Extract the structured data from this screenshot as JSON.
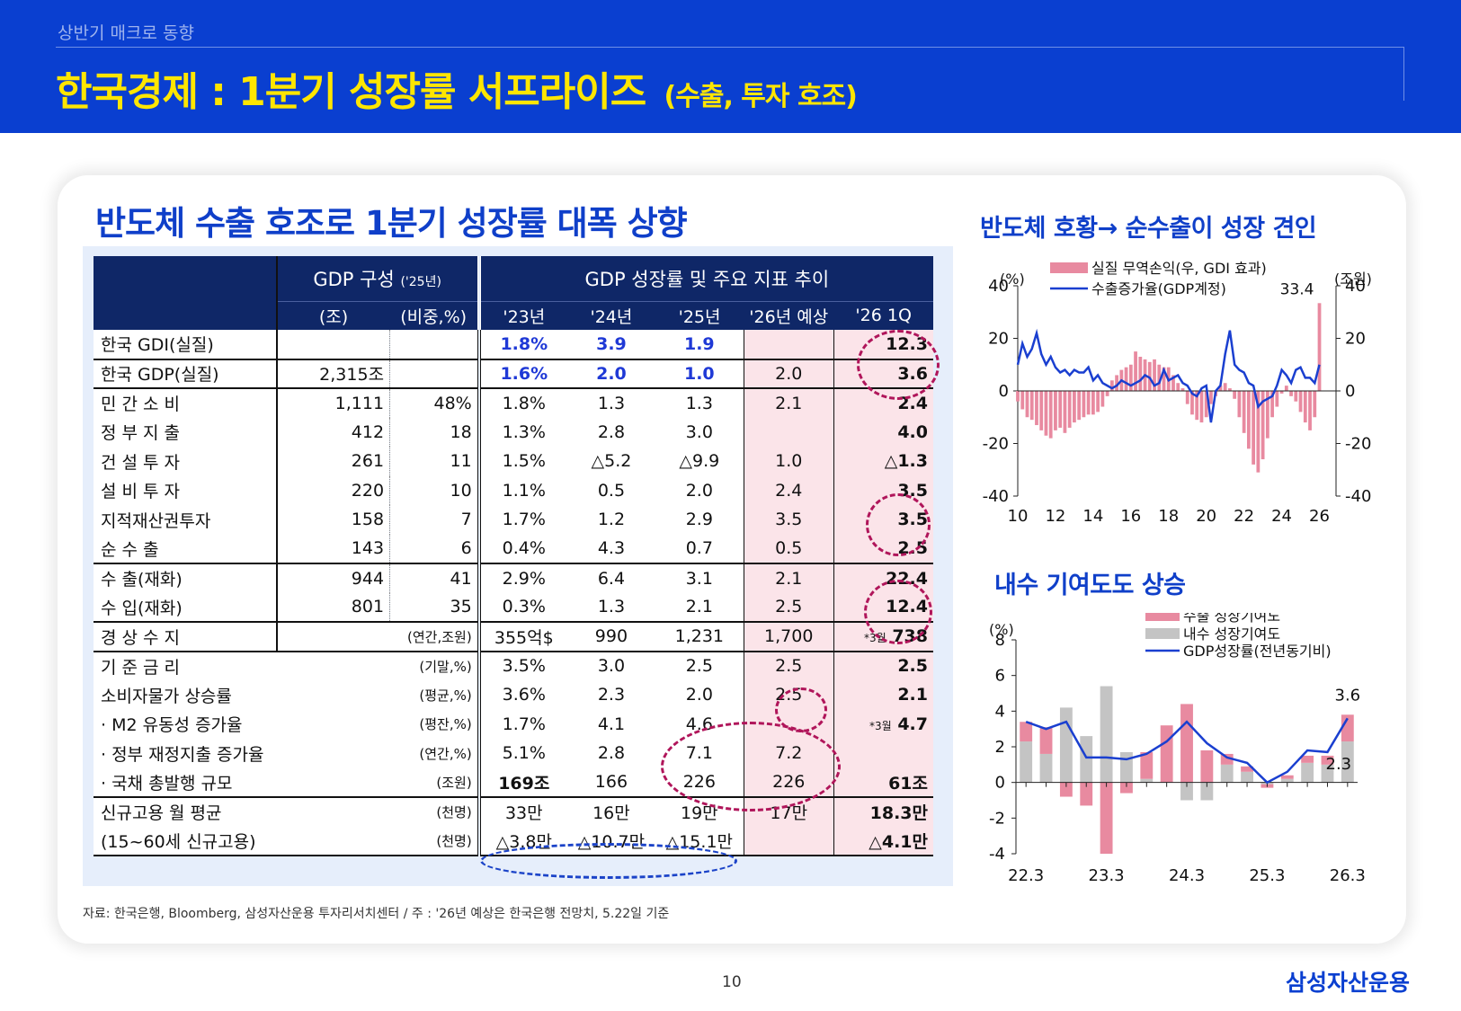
{
  "header": {
    "section": "상반기 매크로 동향",
    "title": "한국경제 : 1분기 성장률 서프라이즈",
    "subtitle": "(수출, 투자 호조)"
  },
  "headline": "반도체 수출 호조로 1분기 성장률 대폭 상향",
  "table": {
    "header_left": "GDP 구성",
    "header_left_year": "('25년)",
    "header_right": "GDP 성장률 및 주요 지표 추이",
    "unit_cols": [
      "(조)",
      "(비중,%)"
    ],
    "year_cols": [
      "'23년",
      "'24년",
      "'25년",
      "'26년 예상",
      "'26 1Q"
    ],
    "rows": [
      {
        "label": "한국 GDI(실질)",
        "amount": "",
        "share": "",
        "y23": "1.8%",
        "y24": "3.9",
        "y25": "1.9",
        "f26": "",
        "q1": "12.3"
      },
      {
        "label": "한국 GDP(실질)",
        "amount": "2,315조",
        "share": "",
        "y23": "1.6%",
        "y24": "2.0",
        "y25": "1.0",
        "f26": "2.0",
        "q1": "3.6"
      },
      {
        "label": "민 간 소 비",
        "amount": "1,111",
        "share": "48%",
        "y23": "1.8%",
        "y24": "1.3",
        "y25": "1.3",
        "f26": "2.1",
        "q1": "2.4"
      },
      {
        "label": "정 부 지 출",
        "amount": "412",
        "share": "18",
        "y23": "1.3%",
        "y24": "2.8",
        "y25": "3.0",
        "f26": "",
        "q1": "4.0"
      },
      {
        "label": "건 설 투 자",
        "amount": "261",
        "share": "11",
        "y23": "1.5%",
        "y24": "△5.2",
        "y25": "△9.9",
        "f26": "1.0",
        "q1": "△1.3"
      },
      {
        "label": "설 비 투 자",
        "amount": "220",
        "share": "10",
        "y23": "1.1%",
        "y24": "0.5",
        "y25": "2.0",
        "f26": "2.4",
        "q1": "3.5"
      },
      {
        "label": "지적재산권투자",
        "amount": "158",
        "share": "7",
        "y23": "1.7%",
        "y24": "1.2",
        "y25": "2.9",
        "f26": "3.5",
        "q1": "3.5"
      },
      {
        "label": "순   수   출",
        "amount": "143",
        "share": "6",
        "y23": "0.4%",
        "y24": "4.3",
        "y25": "0.7",
        "f26": "0.5",
        "q1": "2.5"
      },
      {
        "label": "수   출(재화)",
        "amount": "944",
        "share": "41",
        "y23": "2.9%",
        "y24": "6.4",
        "y25": "3.1",
        "f26": "2.1",
        "q1": "22.4"
      },
      {
        "label": "수   입(재화)",
        "amount": "801",
        "share": "35",
        "y23": "0.3%",
        "y24": "1.3",
        "y25": "2.1",
        "f26": "2.5",
        "q1": "12.4"
      },
      {
        "label": "경 상 수 지",
        "unit": "(연간,조원)",
        "y23": "355억$",
        "y24": "990",
        "y25": "1,231",
        "f26": "1,700",
        "q1_note": "*3월",
        "q1": "738"
      },
      {
        "label": "기 준 금 리",
        "unit": "(기말,%)",
        "y23": "3.5%",
        "y24": "3.0",
        "y25": "2.5",
        "f26": "2.5",
        "q1": "2.5"
      },
      {
        "label": "소비자물가 상승률",
        "unit": "(평균,%)",
        "y23": "3.6%",
        "y24": "2.3",
        "y25": "2.0",
        "f26": "2.5",
        "q1": "2.1"
      },
      {
        "label": "· M2 유동성 증가율",
        "unit": "(평잔,%)",
        "y23": "1.7%",
        "y24": "4.1",
        "y25": "4.6",
        "f26": "",
        "q1_note": "*3월",
        "q1": "4.7"
      },
      {
        "label": "· 정부 재정지출 증가율",
        "unit": "(연간,%)",
        "y23": "5.1%",
        "y24": "2.8",
        "y25": "7.1",
        "f26": "7.2",
        "q1": ""
      },
      {
        "label": "· 국채 총발행 규모",
        "unit": "(조원)",
        "y23": "169조",
        "y24": "166",
        "y25": "226",
        "f26": "226",
        "q1": "61조"
      },
      {
        "label": "신규고용 월 평균",
        "unit": "(천명)",
        "y23": "33만",
        "y24": "16만",
        "y25": "19만",
        "f26": "17만",
        "q1": "18.3만"
      },
      {
        "label": "(15~60세 신규고용)",
        "unit": "(천명)",
        "y23": "△3.8만",
        "y24": "△10.7만",
        "y25": "△15.1만",
        "f26": "",
        "q1": "△4.1만"
      }
    ]
  },
  "source": "자료: 한국은행, Bloomberg, 삼성자산운용 투자리서치센터 / 주 : '26년 예상은 한국은행 전망치, 5.22일 기준",
  "chart_titles": [
    "반도체 호황→ 순수출이 성장 견인",
    "내수 기여도도 상승"
  ],
  "chart_data": [
    {
      "type": "bar",
      "title": "반도체 호황→ 순수출이 성장 견인",
      "ylabel_left": "(%)",
      "ylabel_right": "(조원)",
      "ylim": [
        -40,
        40
      ],
      "yticks": [
        -40,
        -20,
        0,
        20,
        40
      ],
      "ytick_labels": [
        "-40",
        "-20",
        "0",
        "20",
        "40"
      ],
      "xlim": [
        2010,
        2026.5
      ],
      "xticks": [
        10,
        12,
        14,
        16,
        18,
        20,
        22,
        24,
        26
      ],
      "xtick_labels": [
        "10",
        "12",
        "14",
        "16",
        "18",
        "20",
        "22",
        "24",
        "26"
      ],
      "annotation": "33.4",
      "series": [
        {
          "name": "실질 무역손익(우, GDI 효과)",
          "kind": "bar",
          "color": "#e88aa0",
          "x": [
            2010.0,
            2010.25,
            2010.5,
            2010.75,
            2011.0,
            2011.25,
            2011.5,
            2011.75,
            2012.0,
            2012.25,
            2012.5,
            2012.75,
            2013.0,
            2013.25,
            2013.5,
            2013.75,
            2014.0,
            2014.25,
            2014.5,
            2014.75,
            2015.0,
            2015.25,
            2015.5,
            2015.75,
            2016.0,
            2016.25,
            2016.5,
            2016.75,
            2017.0,
            2017.25,
            2017.5,
            2017.75,
            2018.0,
            2018.25,
            2018.5,
            2018.75,
            2019.0,
            2019.25,
            2019.5,
            2019.75,
            2020.0,
            2020.25,
            2020.5,
            2020.75,
            2021.0,
            2021.25,
            2021.5,
            2021.75,
            2022.0,
            2022.25,
            2022.5,
            2022.75,
            2023.0,
            2023.25,
            2023.5,
            2023.75,
            2024.0,
            2024.25,
            2024.5,
            2024.75,
            2025.0,
            2025.25,
            2025.5,
            2025.75,
            2026.0
          ],
          "values": [
            -4,
            -7,
            -10,
            -11,
            -13,
            -15,
            -17,
            -18,
            -15,
            -14,
            -16,
            -14,
            -12,
            -11,
            -10,
            -9,
            -9,
            -8,
            -6,
            -2,
            4,
            6,
            8,
            9,
            10,
            15,
            13,
            12,
            11,
            12,
            10,
            9,
            9,
            6,
            3,
            1,
            -5,
            -9,
            -11,
            -12,
            -10,
            -5,
            -2,
            2,
            3,
            1,
            -3,
            -10,
            -16,
            -22,
            -28,
            -31,
            -26,
            -18,
            -10,
            -6,
            -1,
            2,
            -2,
            -4,
            -8,
            -12,
            -15,
            -10,
            33.4
          ]
        },
        {
          "name": "수출증가율(GDP계정)",
          "kind": "line",
          "color": "#1a3fd0",
          "x": [
            2010.0,
            2010.25,
            2010.5,
            2010.75,
            2011.0,
            2011.25,
            2011.5,
            2011.75,
            2012.0,
            2012.25,
            2012.5,
            2012.75,
            2013.0,
            2013.25,
            2013.5,
            2013.75,
            2014.0,
            2014.25,
            2014.5,
            2014.75,
            2015.0,
            2015.25,
            2015.5,
            2015.75,
            2016.0,
            2016.25,
            2016.5,
            2016.75,
            2017.0,
            2017.25,
            2017.5,
            2017.75,
            2018.0,
            2018.25,
            2018.5,
            2018.75,
            2019.0,
            2019.25,
            2019.5,
            2019.75,
            2020.0,
            2020.25,
            2020.5,
            2020.75,
            2021.0,
            2021.25,
            2021.5,
            2021.75,
            2022.0,
            2022.25,
            2022.5,
            2022.75,
            2023.0,
            2023.25,
            2023.5,
            2023.75,
            2024.0,
            2024.25,
            2024.5,
            2024.75,
            2025.0,
            2025.25,
            2025.5,
            2025.75,
            2026.0
          ],
          "values": [
            10,
            18,
            13,
            16,
            22,
            14,
            10,
            13,
            9,
            7,
            8,
            6,
            8,
            7,
            7,
            9,
            4,
            6,
            3,
            2,
            1,
            2,
            4,
            3,
            2,
            3,
            4,
            6,
            5,
            2,
            3,
            8,
            4,
            5,
            6,
            3,
            2,
            -1,
            -2,
            1,
            2,
            -12,
            0,
            2,
            14,
            23,
            10,
            8,
            7,
            3,
            2,
            -6,
            -4,
            -3,
            -2,
            2,
            8,
            6,
            3,
            8,
            9,
            5,
            5,
            3,
            10
          ]
        }
      ]
    },
    {
      "type": "bar",
      "title": "내수 기여도도 상승",
      "ylabel": "(%)",
      "ylim": [
        -4,
        8
      ],
      "yticks": [
        -4,
        -2,
        0,
        2,
        4,
        6,
        8
      ],
      "ytick_labels": [
        "-4",
        "-2",
        "0",
        "2",
        "4",
        "6",
        "8"
      ],
      "categories": [
        "22.3",
        "22.4",
        "23.1",
        "23.2",
        "23.3",
        "23.4",
        "24.1",
        "24.2",
        "24.3",
        "24.4",
        "25.1",
        "25.2",
        "25.3",
        "25.4",
        "26.1",
        "26.2",
        "26.3"
      ],
      "xtick_labels": [
        "22.3",
        "23.3",
        "24.3",
        "25.3",
        "26.3"
      ],
      "annotations": {
        "end_gdp": "3.6",
        "end_domestic": "2.3"
      },
      "series": [
        {
          "name": "수출 성장기여도",
          "kind": "bar",
          "color": "#e88aa0",
          "values": [
            1.1,
            1.5,
            -0.8,
            -1.3,
            -4.0,
            -0.6,
            1.5,
            3.2,
            4.4,
            1.8,
            0.6,
            0.3,
            -0.2,
            0.2,
            0.4,
            0.5,
            1.5
          ]
        },
        {
          "name": "내수 성장기여도",
          "kind": "bar",
          "color": "#c4c4c4",
          "values": [
            2.3,
            1.6,
            4.2,
            2.6,
            5.4,
            1.7,
            0.2,
            0.0,
            -1.0,
            -1.0,
            1.0,
            0.6,
            -0.1,
            0.2,
            1.1,
            1.0,
            2.3
          ]
        },
        {
          "name": "GDP성장률(전년동기비)",
          "kind": "line",
          "color": "#1a3fd0",
          "values": [
            3.4,
            3.0,
            3.4,
            1.4,
            1.4,
            1.3,
            1.6,
            2.3,
            3.4,
            2.2,
            1.4,
            1.1,
            0.0,
            0.6,
            1.8,
            1.7,
            3.6
          ]
        }
      ]
    }
  ],
  "footer": {
    "page": "10",
    "logo": "삼성자산운용"
  }
}
